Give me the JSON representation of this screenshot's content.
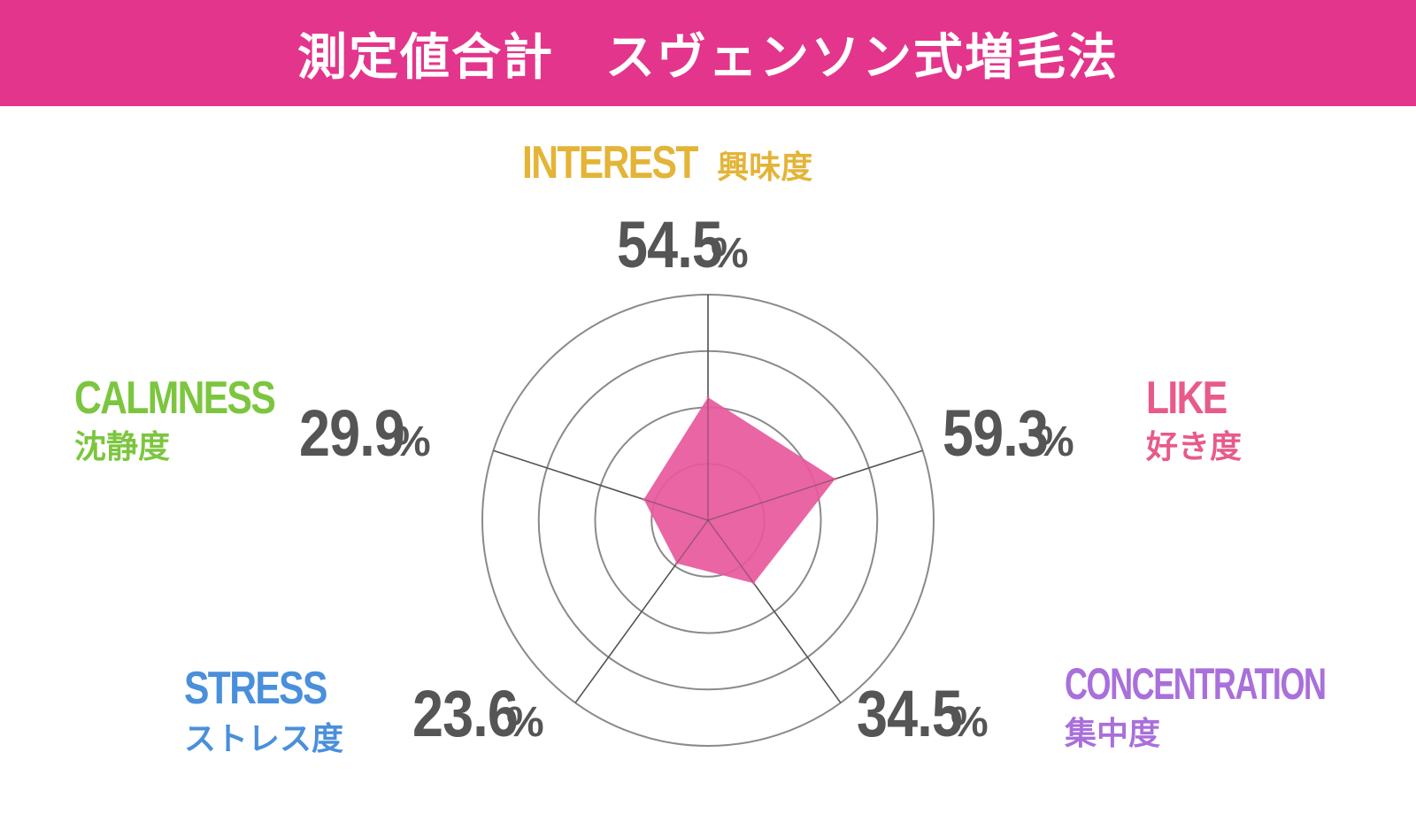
{
  "header": {
    "title": "測定値合計　スヴェンソン式増毛法"
  },
  "colors": {
    "header_bg": "#e3358b",
    "interest": "#e3b437",
    "like": "#e85a8a",
    "concentration": "#a96fdb",
    "stress": "#4a8fdb",
    "calmness": "#7cc63f",
    "area_fill": "#e8589c",
    "value_text": "#555555"
  },
  "chart_data": {
    "type": "radar",
    "axes": [
      {
        "key": "interest",
        "en": "INTEREST",
        "jp": "興味度",
        "value": 54.5,
        "display": "54.5",
        "unit": "%"
      },
      {
        "key": "like",
        "en": "LIKE",
        "jp": "好き度",
        "value": 59.3,
        "display": "59.3",
        "unit": "%"
      },
      {
        "key": "concentration",
        "en": "CONCENTRATION",
        "jp": "集中度",
        "value": 34.5,
        "display": "34.5",
        "unit": "%"
      },
      {
        "key": "stress",
        "en": "STRESS",
        "jp": "ストレス度",
        "value": 23.6,
        "display": "23.6",
        "unit": "%"
      },
      {
        "key": "calmness",
        "en": "CALMNESS",
        "jp": "沈静度",
        "value": 29.9,
        "display": "29.9",
        "unit": "%"
      }
    ],
    "range": [
      0,
      100
    ],
    "rings": 4,
    "grid": true
  }
}
